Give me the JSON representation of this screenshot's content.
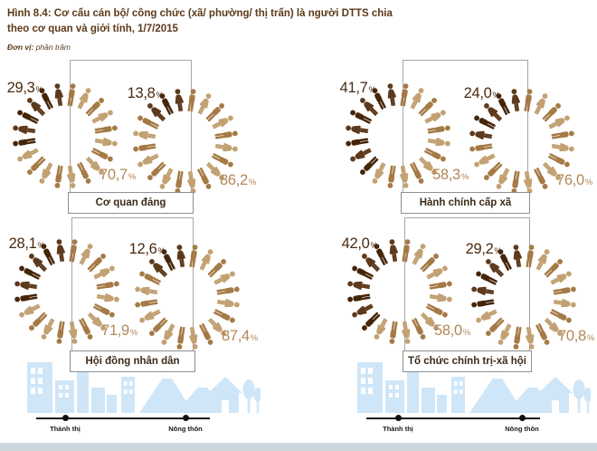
{
  "figure": {
    "label": "Hình 8.4:",
    "title": "Cơ cấu cán bộ/ công chức (xã/ phường/ thị trấn) là người DTTS chia theo cơ quan và giới tính, 1/7/2015",
    "unit_label": "Đơn vị:",
    "unit_value": "phần trăm"
  },
  "pct_symbol": "%",
  "axis": {
    "urban": "Thành thị",
    "rural": "Nông thôn"
  },
  "colors": {
    "dark_male": "#452508",
    "dark_female": "#5d3a1c",
    "light_male": "#a57a46",
    "light_female": "#c2a173",
    "dark_text": "#4a2a10",
    "light_text": "#b28757",
    "skyline": "#cfe6f8",
    "bottom_bar": "#ccd6dd"
  },
  "chart_data": {
    "type": "pictogram",
    "icons_per_circle": 20,
    "unit": "percent",
    "categories": [
      "Thành thị",
      "Nông thôn"
    ],
    "groups": [
      {
        "label": "Cơ quan đảng",
        "circles": [
          {
            "category": "Thành thị",
            "dark_label": "29,3",
            "dark_pct": 29.3,
            "light_label": "70,7",
            "light_pct": 70.7,
            "dark_icon_count": 6
          },
          {
            "category": "Nông thôn",
            "dark_label": "13,8",
            "dark_pct": 13.8,
            "light_label": "86,2",
            "light_pct": 86.2,
            "dark_icon_count": 3
          }
        ]
      },
      {
        "label": "Hành chính cấp xã",
        "circles": [
          {
            "category": "Thành thị",
            "dark_label": "41,7",
            "dark_pct": 41.7,
            "light_label": "58,3",
            "light_pct": 58.3,
            "dark_icon_count": 8
          },
          {
            "category": "Nông thôn",
            "dark_label": "24,0",
            "dark_pct": 24.0,
            "light_label": "76,0",
            "light_pct": 76.0,
            "dark_icon_count": 5
          }
        ]
      },
      {
        "label": "Hội đồng nhân dân",
        "circles": [
          {
            "category": "Thành thị",
            "dark_label": "28,1",
            "dark_pct": 28.1,
            "light_label": "71,9",
            "light_pct": 71.9,
            "dark_icon_count": 6
          },
          {
            "category": "Nông thôn",
            "dark_label": "12,6",
            "dark_pct": 12.6,
            "light_label": "87,4",
            "light_pct": 87.4,
            "dark_icon_count": 3
          }
        ]
      },
      {
        "label": "Tổ chức chính trị-xã hội",
        "circles": [
          {
            "category": "Thành thị",
            "dark_label": "42,0",
            "dark_pct": 42.0,
            "light_label": "58,0",
            "light_pct": 58.0,
            "dark_icon_count": 8
          },
          {
            "category": "Nông thôn",
            "dark_label": "29,2",
            "dark_pct": 29.2,
            "light_label": "70,8",
            "light_pct": 70.8,
            "dark_icon_count": 6
          }
        ]
      }
    ]
  }
}
